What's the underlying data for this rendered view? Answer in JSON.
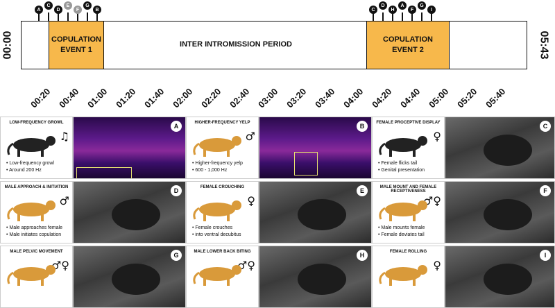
{
  "timeline": {
    "start_label": "00:00",
    "end_label": "05:43",
    "period_label": "INTER INTROMISSION PERIOD",
    "event1": [
      "COPULATION",
      "EVENT 1"
    ],
    "event2": [
      "COPULATION",
      "EVENT 2"
    ],
    "ticks": [
      "00:20",
      "00:40",
      "01:00",
      "01:20",
      "01:40",
      "02:00",
      "02:20",
      "02:40",
      "03:00",
      "03:20",
      "03:40",
      "04:00",
      "04:20",
      "04:40",
      "05:00",
      "05:20",
      "05:40"
    ],
    "markers_left": [
      "A",
      "C",
      "D",
      "E",
      "F",
      "G",
      "B"
    ],
    "markers_right": [
      "C",
      "D",
      "H",
      "A",
      "F",
      "G",
      "I"
    ]
  },
  "panels": [
    {
      "title": "LOW-FREQUENCY GROWL",
      "bullets": [
        "Low-frequency growl",
        "Around 200 Hz"
      ],
      "symbol": "♫",
      "letter": "A",
      "image": "spectrogram"
    },
    {
      "title": "HIGHER-FREQUENCY YELP",
      "bullets": [
        "Higher-frequency yelp",
        "600 - 1,000 Hz"
      ],
      "symbol": "♂",
      "letter": "B",
      "image": "spectrogram"
    },
    {
      "title": "FEMALE PROCEPTIVE DISPLAY",
      "bullets": [
        "Female flicks tail",
        "Genital presentation"
      ],
      "symbol": "♀",
      "letter": "C",
      "image": "photo"
    },
    {
      "title": "MALE APPROACH & INITIATION",
      "bullets": [
        "Male approaches female",
        "Male initiates copulation"
      ],
      "symbol": "♂",
      "letter": "D",
      "image": "photo"
    },
    {
      "title": "FEMALE CROUCHING",
      "bullets": [
        "Female crouches",
        "into ventral decubitus"
      ],
      "symbol": "♀",
      "letter": "E",
      "image": "photo"
    },
    {
      "title": "MALE MOUNT AND FEMALE RECEPTIVENESS",
      "bullets": [
        "Male mounts female",
        "Female deviates tail"
      ],
      "symbol": "♂♀",
      "letter": "F",
      "image": "photo"
    },
    {
      "title": "MALE PELVIC MOVEMENT",
      "bullets": [],
      "symbol": "♂♀",
      "letter": "G",
      "image": "photo"
    },
    {
      "title": "MALE LOWER BACK BITING",
      "bullets": [],
      "symbol": "♂♀",
      "letter": "H",
      "image": "photo"
    },
    {
      "title": "FEMALE ROLLING",
      "bullets": [],
      "symbol": "♀",
      "letter": "I",
      "image": "photo"
    }
  ],
  "colors": {
    "copulation": "#f7b84b",
    "panel_border": "#cccccc"
  }
}
